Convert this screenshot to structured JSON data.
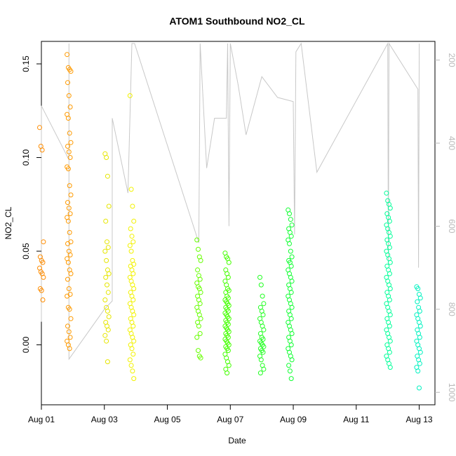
{
  "chart_data": {
    "type": "scatter",
    "title": "ATOM1 Southbound NO2_CL",
    "xlabel": "Date",
    "ylabel": "NO2_CL",
    "x_ticks": [
      "Aug 01",
      "Aug 03",
      "Aug 05",
      "Aug 07",
      "Aug 09",
      "Aug 11",
      "Aug 13"
    ],
    "y_ticks": [
      "0.00",
      "0.05",
      "0.10",
      "0.15"
    ],
    "y_right_ticks": [
      "200",
      "400",
      "600",
      "800",
      "1000"
    ],
    "xlim": [
      "2024-08-01T00:00",
      "2024-08-13T12:00"
    ],
    "ylim": [
      -0.032,
      0.162
    ],
    "y_right_lim": [
      1030,
      155
    ],
    "grid": false,
    "colors": {
      "aug01": "#ff8c00",
      "aug01b": "#ff9a00",
      "aug03": "#e6e600",
      "aug04": "#f2f200",
      "aug06": "#66ff00",
      "aug07": "#44ff00",
      "aug08": "#22ff22",
      "aug09": "#11ff33",
      "aug12": "#00ff99",
      "aug13": "#00f2c0",
      "altitude": "#c8c8c8"
    },
    "series": [
      {
        "group": "aug01",
        "x": "2024-08-01T00:05",
        "values": [
          0.116,
          0.106,
          0.104,
          0.055,
          0.047,
          0.045,
          0.044,
          0.041,
          0.039,
          0.038,
          0.036,
          0.03,
          0.029,
          0.024
        ]
      },
      {
        "group": "aug01b",
        "x": "2024-08-01T21:00",
        "values": [
          0.155,
          0.148,
          0.147,
          0.146,
          0.14,
          0.133,
          0.127,
          0.123,
          0.121,
          0.113,
          0.108,
          0.106,
          0.103,
          0.1,
          0.095,
          0.094,
          0.085,
          0.08,
          0.076,
          0.073,
          0.07,
          0.068,
          0.066,
          0.06,
          0.055,
          0.054,
          0.05,
          0.048,
          0.046,
          0.044,
          0.04,
          0.038,
          0.035,
          0.03,
          0.027,
          0.026,
          0.02,
          0.019,
          0.014,
          0.01,
          0.007,
          0.004,
          0.002,
          0.0,
          -0.002
        ]
      },
      {
        "group": "aug03",
        "x": "2024-08-03T02:00",
        "values": [
          0.102,
          0.1,
          0.09,
          0.074,
          0.066,
          0.055,
          0.052,
          0.05,
          0.045,
          0.04,
          0.038,
          0.036,
          0.032,
          0.028,
          0.024,
          0.02,
          0.018,
          0.015,
          0.012,
          0.01,
          0.008,
          0.005,
          0.002,
          -0.009
        ]
      },
      {
        "group": "aug04",
        "x": "2024-08-03T21:00",
        "values": [
          0.133,
          0.083,
          0.074,
          0.066,
          0.062,
          0.058,
          0.055,
          0.053,
          0.05,
          0.045,
          0.043,
          0.042,
          0.04,
          0.038,
          0.036,
          0.034,
          0.032,
          0.03,
          0.028,
          0.026,
          0.024,
          0.022,
          0.02,
          0.018,
          0.016,
          0.014,
          0.012,
          0.01,
          0.008,
          0.006,
          0.004,
          0.002,
          0.0,
          -0.002,
          -0.005,
          -0.008,
          -0.011,
          -0.014,
          -0.018
        ]
      },
      {
        "group": "aug06",
        "x": "2024-08-06T00:00",
        "values": [
          0.056,
          0.051,
          0.047,
          0.045,
          0.04,
          0.037,
          0.035,
          0.033,
          0.031,
          0.03,
          0.028,
          0.026,
          0.024,
          0.022,
          0.02,
          0.018,
          0.016,
          0.014,
          0.012,
          0.01,
          0.006,
          0.004,
          -0.003,
          -0.006,
          -0.007
        ]
      },
      {
        "group": "aug07",
        "x": "2024-08-06T21:30",
        "values": [
          0.049,
          0.047,
          0.046,
          0.044,
          0.04,
          0.038,
          0.036,
          0.034,
          0.032,
          0.03,
          0.029,
          0.028,
          0.026,
          0.025,
          0.024,
          0.023,
          0.022,
          0.021,
          0.02,
          0.019,
          0.018,
          0.017,
          0.016,
          0.015,
          0.014,
          0.013,
          0.012,
          0.011,
          0.01,
          0.009,
          0.008,
          0.007,
          0.006,
          0.005,
          0.004,
          0.003,
          0.002,
          0.001,
          0.0,
          -0.001,
          -0.002,
          -0.003,
          -0.005,
          -0.007,
          -0.009,
          -0.011,
          -0.013,
          -0.015
        ]
      },
      {
        "group": "aug08",
        "x": "2024-08-08T00:00",
        "values": [
          0.036,
          0.032,
          0.026,
          0.022,
          0.02,
          0.018,
          0.016,
          0.014,
          0.012,
          0.01,
          0.008,
          0.006,
          0.004,
          0.003,
          0.002,
          0.001,
          0.0,
          -0.001,
          -0.002,
          -0.003,
          -0.004,
          -0.006,
          -0.008,
          -0.011,
          -0.013,
          -0.015
        ]
      },
      {
        "group": "aug09",
        "x": "2024-08-08T21:30",
        "values": [
          0.072,
          0.07,
          0.067,
          0.064,
          0.062,
          0.06,
          0.058,
          0.056,
          0.054,
          0.05,
          0.047,
          0.045,
          0.044,
          0.042,
          0.04,
          0.038,
          0.036,
          0.034,
          0.032,
          0.03,
          0.028,
          0.026,
          0.024,
          0.022,
          0.02,
          0.018,
          0.016,
          0.014,
          0.012,
          0.01,
          0.008,
          0.006,
          0.004,
          0.002,
          0.0,
          -0.002,
          -0.004,
          -0.006,
          -0.008,
          -0.011,
          -0.014,
          -0.018
        ]
      },
      {
        "group": "aug12",
        "x": "2024-08-12T00:30",
        "values": [
          0.081,
          0.077,
          0.075,
          0.073,
          0.07,
          0.068,
          0.066,
          0.064,
          0.062,
          0.06,
          0.058,
          0.056,
          0.054,
          0.052,
          0.05,
          0.048,
          0.046,
          0.044,
          0.042,
          0.04,
          0.038,
          0.036,
          0.034,
          0.032,
          0.03,
          0.028,
          0.026,
          0.024,
          0.022,
          0.02,
          0.018,
          0.016,
          0.014,
          0.012,
          0.01,
          0.008,
          0.006,
          0.004,
          0.002,
          0.0,
          -0.002,
          -0.004,
          -0.006,
          -0.008,
          -0.01,
          -0.012
        ]
      },
      {
        "group": "aug13",
        "x": "2024-08-12T23:30",
        "values": [
          0.031,
          0.03,
          0.027,
          0.025,
          0.023,
          0.02,
          0.018,
          0.016,
          0.014,
          0.012,
          0.01,
          0.008,
          0.006,
          0.004,
          0.002,
          0.0,
          -0.002,
          -0.004,
          -0.006,
          -0.008,
          -0.01,
          -0.012,
          -0.014,
          -0.023
        ]
      }
    ],
    "altitude_series": {
      "unit_axis": "right",
      "values": [
        [
          "2024-08-01T00:00",
          830
        ],
        [
          "2024-08-01T00:00",
          690
        ],
        [
          "2024-08-01T00:00",
          610
        ],
        [
          "2024-08-01T00:00",
          310
        ],
        [
          "2024-08-01T21:00",
          440
        ],
        [
          "2024-08-01T21:00",
          160
        ],
        [
          "2024-08-01T21:00",
          780
        ],
        [
          "2024-08-01T21:00",
          920
        ],
        [
          "2024-08-03T00:00",
          800
        ],
        [
          "2024-08-03T06:00",
          780
        ],
        [
          "2024-08-03T06:00",
          340
        ],
        [
          "2024-08-03T18:00",
          520
        ],
        [
          "2024-08-03T21:00",
          160
        ],
        [
          "2024-08-03T22:00",
          160
        ],
        [
          "2024-08-03T23:00",
          160
        ],
        [
          "2024-08-06T00:00",
          640
        ],
        [
          "2024-08-06T01:00",
          160
        ],
        [
          "2024-08-06T06:00",
          460
        ],
        [
          "2024-08-06T12:00",
          340
        ],
        [
          "2024-08-06T21:00",
          340
        ],
        [
          "2024-08-06T22:00",
          160
        ],
        [
          "2024-08-06T23:00",
          600
        ],
        [
          "2024-08-07T00:00",
          160
        ],
        [
          "2024-08-07T06:00",
          260
        ],
        [
          "2024-08-07T12:00",
          380
        ],
        [
          "2024-08-08T00:00",
          240
        ],
        [
          "2024-08-08T12:00",
          290
        ],
        [
          "2024-08-09T00:00",
          300
        ],
        [
          "2024-08-09T01:00",
          620
        ],
        [
          "2024-08-09T02:00",
          180
        ],
        [
          "2024-08-09T06:00",
          160
        ],
        [
          "2024-08-09T18:00",
          470
        ],
        [
          "2024-08-12T00:00",
          160
        ],
        [
          "2024-08-12T00:30",
          690
        ],
        [
          "2024-08-12T01:00",
          160
        ],
        [
          "2024-08-12T23:00",
          270
        ],
        [
          "2024-08-12T23:30",
          700
        ],
        [
          "2024-08-13T00:00",
          160
        ]
      ]
    }
  }
}
